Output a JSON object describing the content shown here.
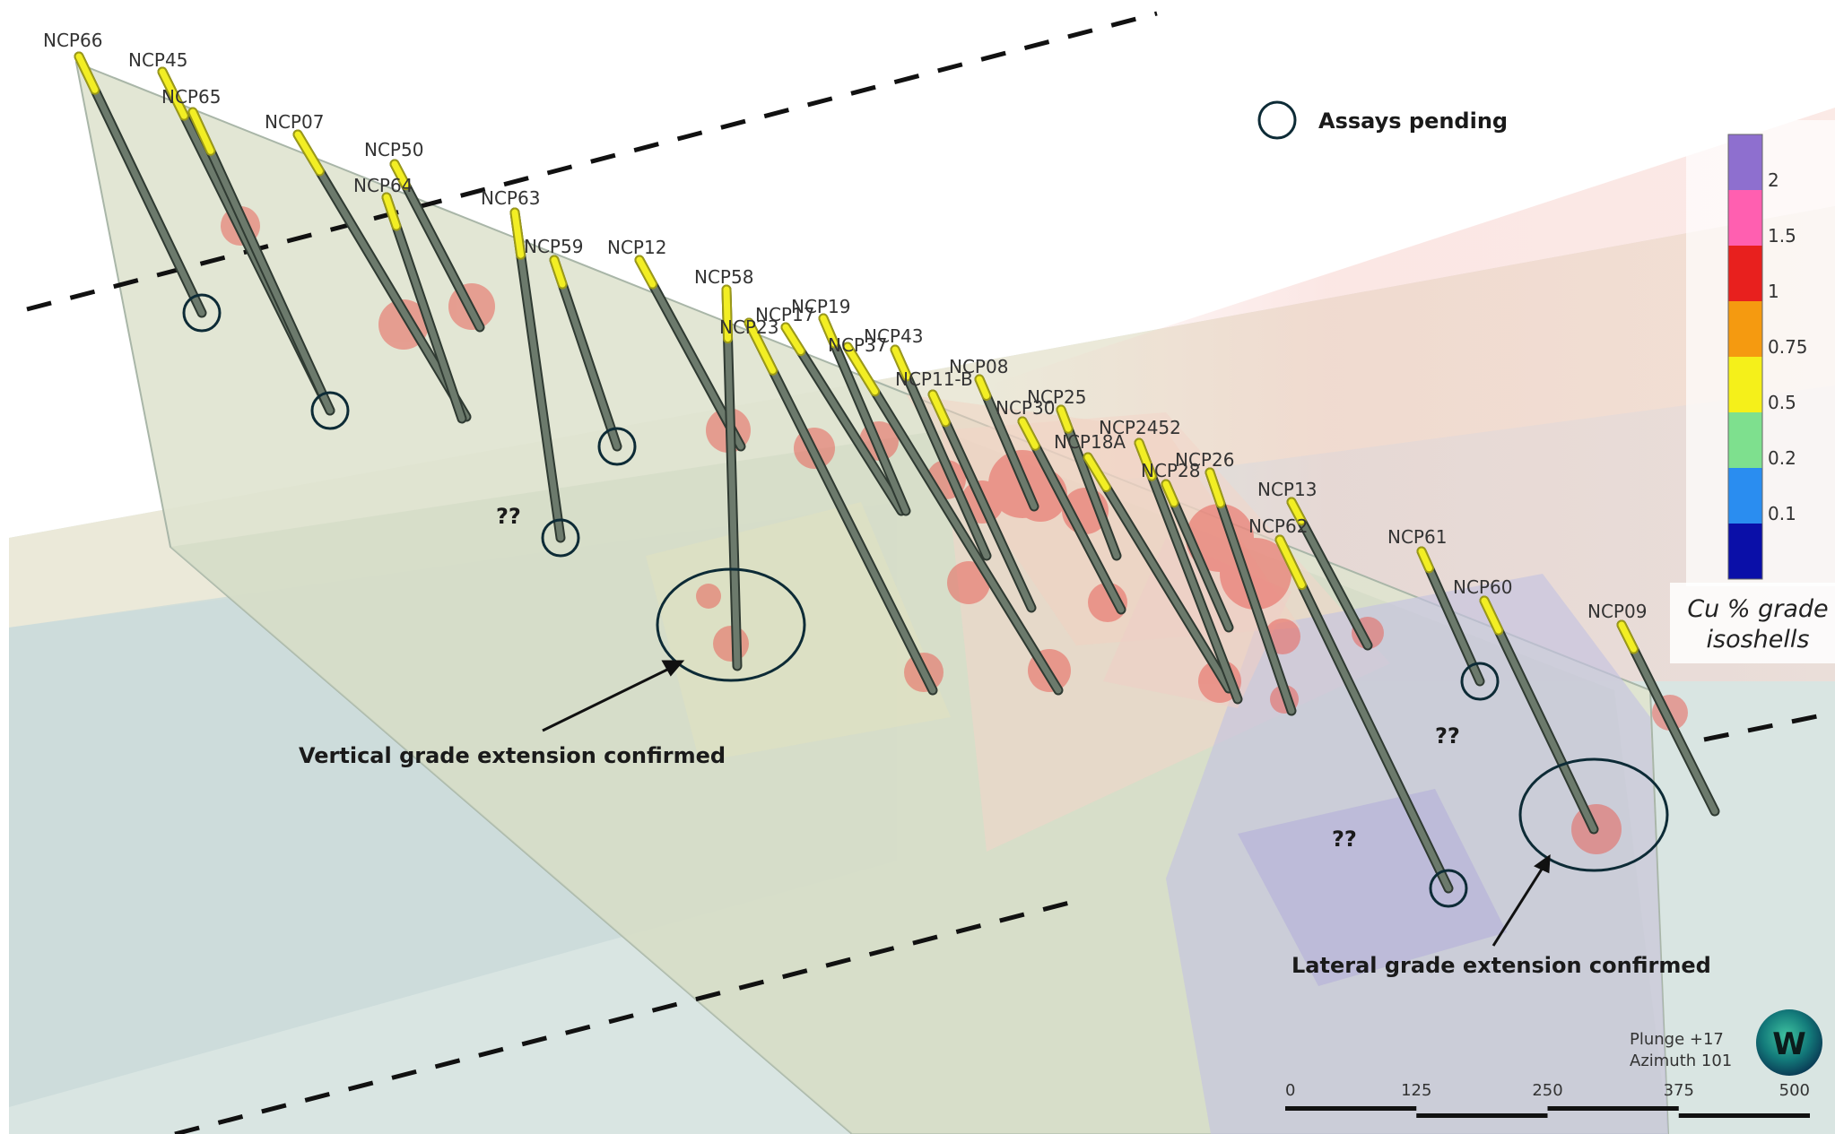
{
  "legend": {
    "assays_pending_label": "Assays pending",
    "grade_title_line1": "Cu % grade",
    "grade_title_line2": "isoshells",
    "grade_bins": [
      {
        "value": "2",
        "color": "#8e6fcf"
      },
      {
        "value": "1.5",
        "color": "#ff5fb0"
      },
      {
        "value": "1",
        "color": "#e8201e"
      },
      {
        "value": "0.75",
        "color": "#f59a10"
      },
      {
        "value": "0.5",
        "color": "#f5f01a"
      },
      {
        "value": "0.2",
        "color": "#7ee08e"
      },
      {
        "value": "0.1",
        "color": "#2a8df0"
      },
      {
        "value": "",
        "color": "#0a0fa8"
      }
    ]
  },
  "annotations": {
    "vertical": "Vertical grade extension confirmed",
    "lateral": "Lateral grade extension confirmed",
    "unknown_marker": "??"
  },
  "view": {
    "plunge": "Plunge +17",
    "azimuth": "Azimuth 101",
    "compass_letter": "W"
  },
  "scale_bar": {
    "ticks": [
      "0",
      "125",
      "250",
      "375",
      "500"
    ]
  },
  "drillholes": [
    {
      "id": "NCP66"
    },
    {
      "id": "NCP45"
    },
    {
      "id": "NCP65"
    },
    {
      "id": "NCP07"
    },
    {
      "id": "NCP50"
    },
    {
      "id": "NCP64"
    },
    {
      "id": "NCP63"
    },
    {
      "id": "NCP59"
    },
    {
      "id": "NCP12"
    },
    {
      "id": "NCP58"
    },
    {
      "id": "NCP23"
    },
    {
      "id": "NCP17"
    },
    {
      "id": "NCP19"
    },
    {
      "id": "NCP37"
    },
    {
      "id": "NCP43"
    },
    {
      "id": "NCP11-B"
    },
    {
      "id": "NCP08"
    },
    {
      "id": "NCP30"
    },
    {
      "id": "NCP25"
    },
    {
      "id": "NCP18A"
    },
    {
      "id": "NCP2452"
    },
    {
      "id": "NCP28"
    },
    {
      "id": "NCP26"
    },
    {
      "id": "NCP13"
    },
    {
      "id": "NCP62"
    },
    {
      "id": "NCP61"
    },
    {
      "id": "NCP60"
    },
    {
      "id": "NCP09"
    }
  ]
}
